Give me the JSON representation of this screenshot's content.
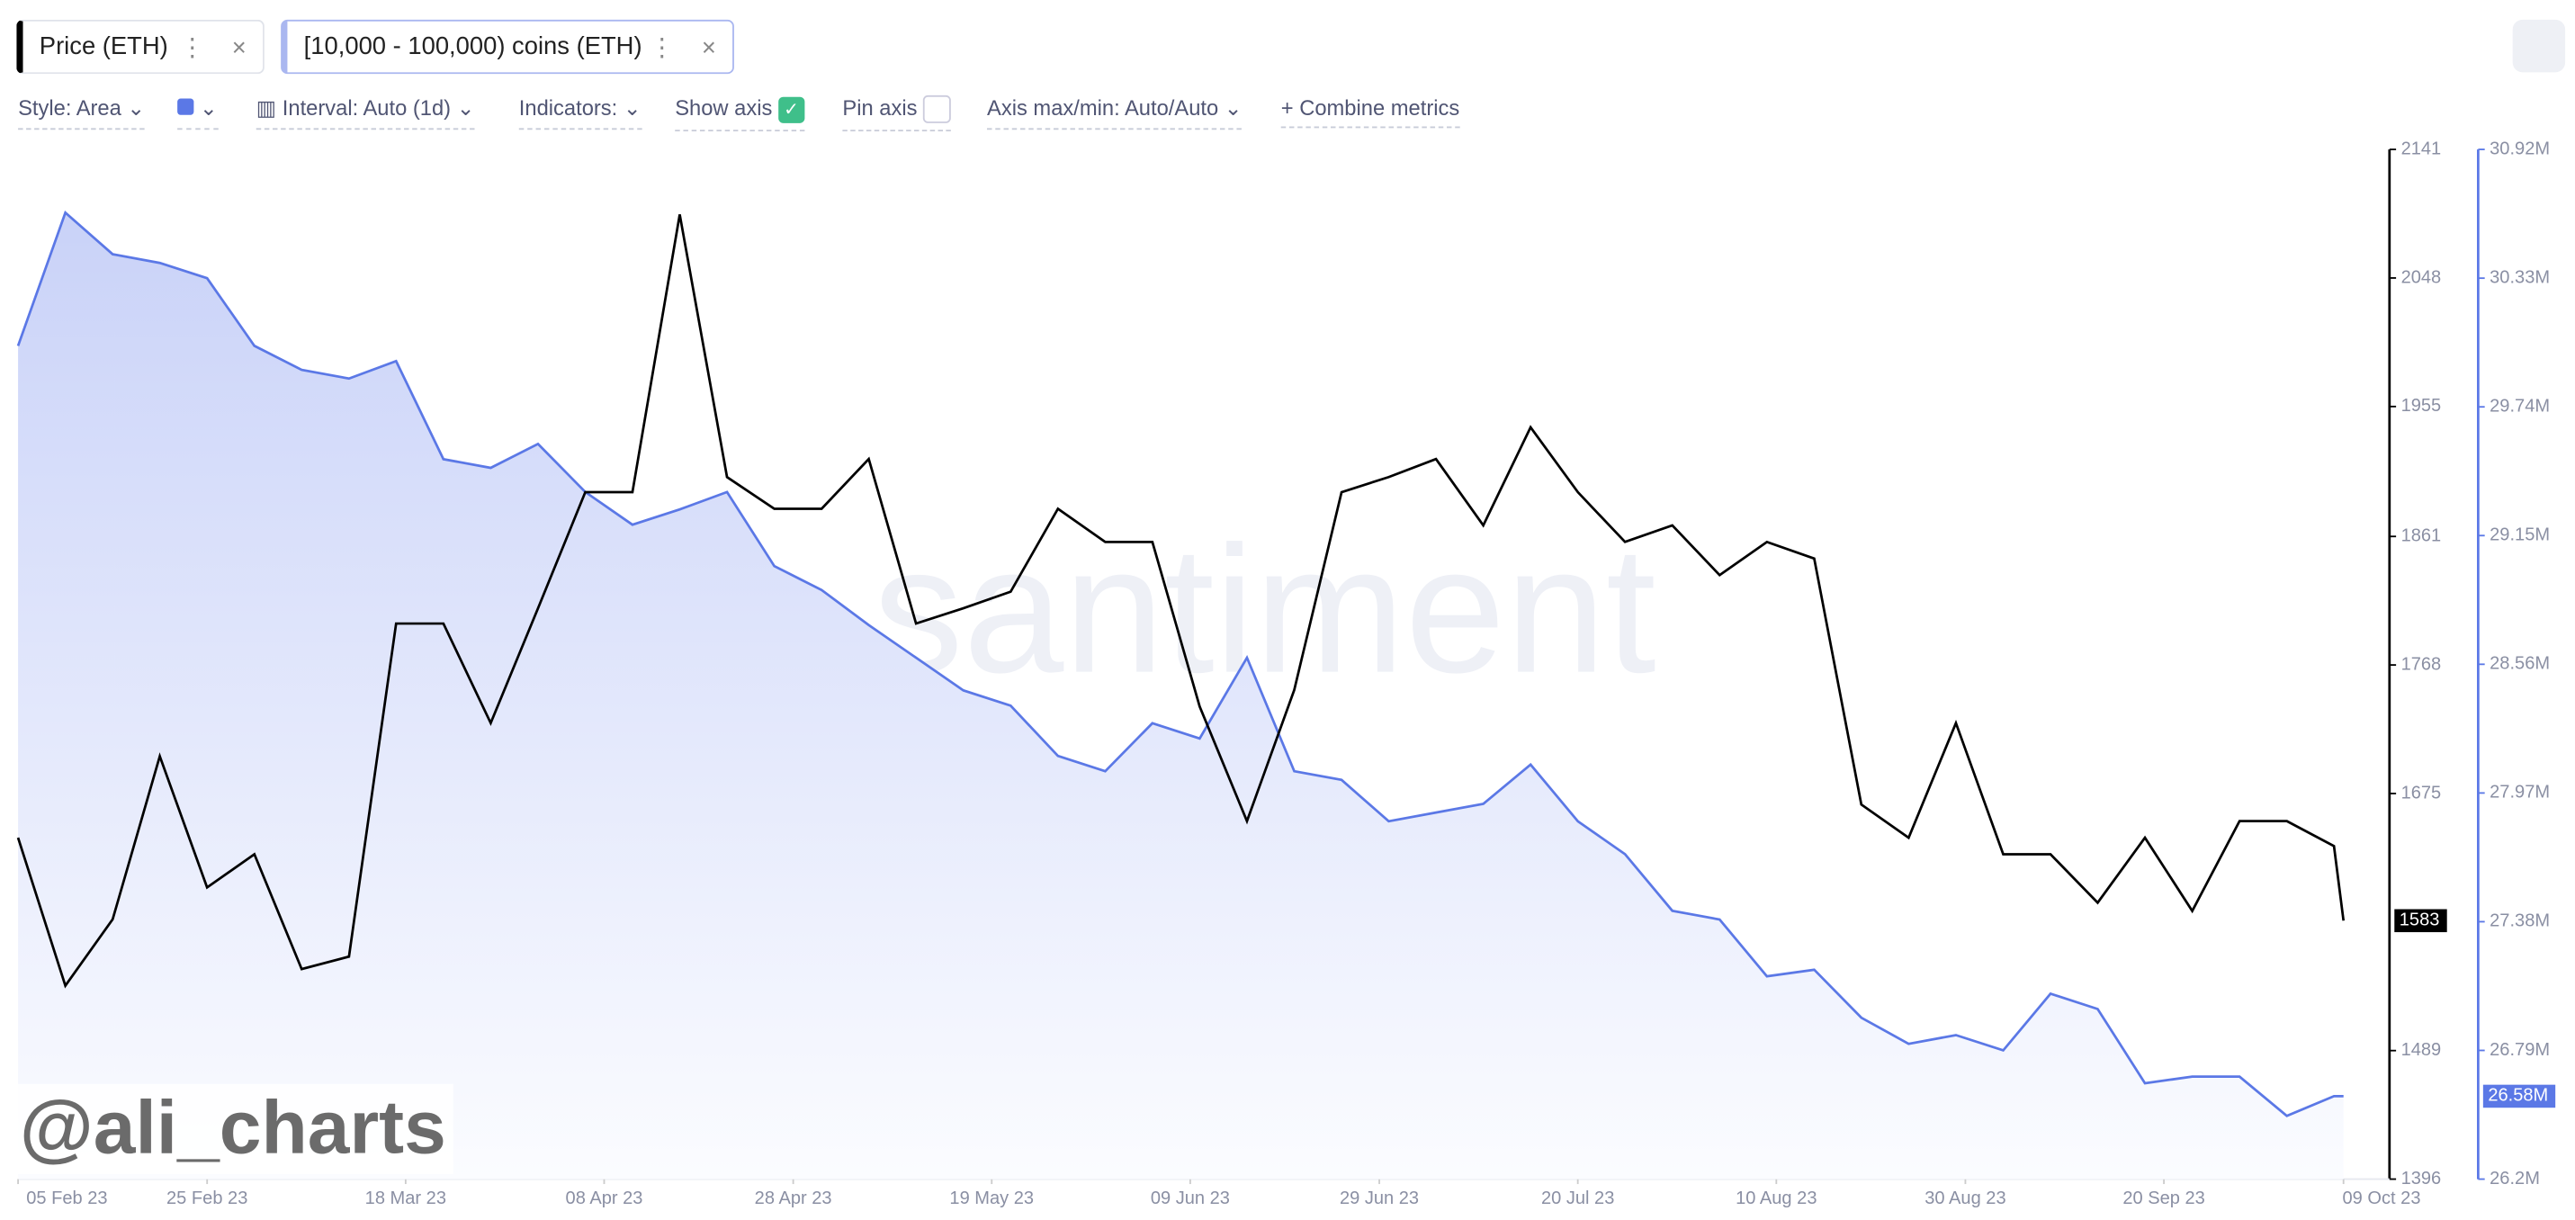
{
  "toolbar": {
    "style": "Style: Area",
    "interval": "Interval: Auto (1d)",
    "indicators": "Indicators:",
    "show_axis": "Show axis",
    "pin_axis": "Pin axis",
    "axis_minmax": "Axis max/min: Auto/Auto",
    "combine": "Combine metrics"
  },
  "chart_data": {
    "type": "line",
    "watermark": "santiment",
    "handle": "@ali_charts",
    "x": [
      "2023-02-05",
      "2023-02-10",
      "2023-02-15",
      "2023-02-20",
      "2023-02-25",
      "2023-03-02",
      "2023-03-07",
      "2023-03-12",
      "2023-03-17",
      "2023-03-22",
      "2023-03-27",
      "2023-04-01",
      "2023-04-06",
      "2023-04-11",
      "2023-04-16",
      "2023-04-21",
      "2023-04-26",
      "2023-05-01",
      "2023-05-06",
      "2023-05-11",
      "2023-05-16",
      "2023-05-21",
      "2023-05-26",
      "2023-05-31",
      "2023-06-05",
      "2023-06-10",
      "2023-06-15",
      "2023-06-20",
      "2023-06-25",
      "2023-06-30",
      "2023-07-05",
      "2023-07-10",
      "2023-07-15",
      "2023-07-20",
      "2023-07-25",
      "2023-07-30",
      "2023-08-04",
      "2023-08-09",
      "2023-08-14",
      "2023-08-19",
      "2023-08-24",
      "2023-08-29",
      "2023-09-03",
      "2023-09-08",
      "2023-09-13",
      "2023-09-18",
      "2023-09-23",
      "2023-09-28",
      "2023-10-03",
      "2023-10-08",
      "2023-10-09"
    ],
    "series": [
      {
        "name": "Price (ETH)",
        "color": "#000000",
        "axis": "y",
        "values": [
          1643,
          1536,
          1584,
          1702,
          1607,
          1631,
          1548,
          1557,
          1798,
          1798,
          1726,
          1809,
          1893,
          1893,
          2094,
          1904,
          1881,
          1881,
          1917,
          1798,
          1809,
          1821,
          1881,
          1857,
          1857,
          1738,
          1655,
          1750,
          1893,
          1904,
          1917,
          1869,
          1940,
          1893,
          1857,
          1869,
          1833,
          1857,
          1845,
          1667,
          1643,
          1726,
          1631,
          1631,
          1596,
          1643,
          1590,
          1655,
          1655,
          1637,
          1583
        ]
      },
      {
        "name": "[10,000 - 100,000) coins (ETH)",
        "color": "#5b78e6",
        "axis": "y2",
        "area": true,
        "values": [
          30020000,
          30630000,
          30440000,
          30400000,
          30330000,
          30020000,
          29910000,
          29870000,
          29950000,
          29500000,
          29460000,
          29570000,
          29350000,
          29200000,
          29270000,
          29350000,
          29010000,
          28900000,
          28740000,
          28590000,
          28440000,
          28370000,
          28140000,
          28070000,
          28290000,
          28220000,
          28590000,
          28070000,
          28030000,
          27840000,
          27880000,
          27920000,
          28100000,
          27840000,
          27690000,
          27430000,
          27390000,
          27130000,
          27160000,
          26940000,
          26820000,
          26860000,
          26790000,
          27050000,
          26980000,
          26640000,
          26670000,
          26670000,
          26490000,
          26580000,
          26580000
        ],
        "value_labels": [
          null,
          null,
          null,
          null,
          null,
          null,
          null,
          null,
          null,
          null,
          null,
          null,
          null,
          null,
          null,
          null,
          null,
          null,
          null,
          null,
          null,
          null,
          null,
          null,
          null,
          null,
          null,
          null,
          null,
          null,
          null,
          null,
          null,
          null,
          null,
          null,
          null,
          null,
          null,
          null,
          null,
          null,
          null,
          null,
          null,
          null,
          null,
          null,
          null,
          null,
          "26.58M"
        ]
      }
    ],
    "xlim": [
      "2023-02-05",
      "2023-10-09"
    ],
    "xticks": [
      {
        "value": "2023-02-05",
        "label": "05 Feb 23"
      },
      {
        "value": "2023-02-25",
        "label": "25 Feb 23"
      },
      {
        "value": "2023-03-18",
        "label": "18 Mar 23"
      },
      {
        "value": "2023-04-08",
        "label": "08 Apr 23"
      },
      {
        "value": "2023-04-28",
        "label": "28 Apr 23"
      },
      {
        "value": "2023-05-19",
        "label": "19 May 23"
      },
      {
        "value": "2023-06-09",
        "label": "09 Jun 23"
      },
      {
        "value": "2023-06-29",
        "label": "29 Jun 23"
      },
      {
        "value": "2023-07-20",
        "label": "20 Jul 23"
      },
      {
        "value": "2023-08-10",
        "label": "10 Aug 23"
      },
      {
        "value": "2023-08-30",
        "label": "30 Aug 23"
      },
      {
        "value": "2023-09-20",
        "label": "20 Sep 23"
      },
      {
        "value": "2023-10-09",
        "label": "09 Oct 23"
      }
    ],
    "ylim": [
      1396,
      2141
    ],
    "yticks": [
      1396,
      1489,
      1675,
      1768,
      1861,
      1955,
      2048,
      2141
    ],
    "y2lim": [
      26200000,
      30920000
    ],
    "y2ticks": [
      {
        "value": 26200000,
        "label": "26.2M"
      },
      {
        "value": 26790000,
        "label": "26.79M"
      },
      {
        "value": 27380000,
        "label": "27.38M"
      },
      {
        "value": 27970000,
        "label": "27.97M"
      },
      {
        "value": 28560000,
        "label": "28.56M"
      },
      {
        "value": 29150000,
        "label": "29.15M"
      },
      {
        "value": 29740000,
        "label": "29.74M"
      },
      {
        "value": 30330000,
        "label": "30.33M"
      },
      {
        "value": 30920000,
        "label": "30.92M"
      }
    ]
  }
}
